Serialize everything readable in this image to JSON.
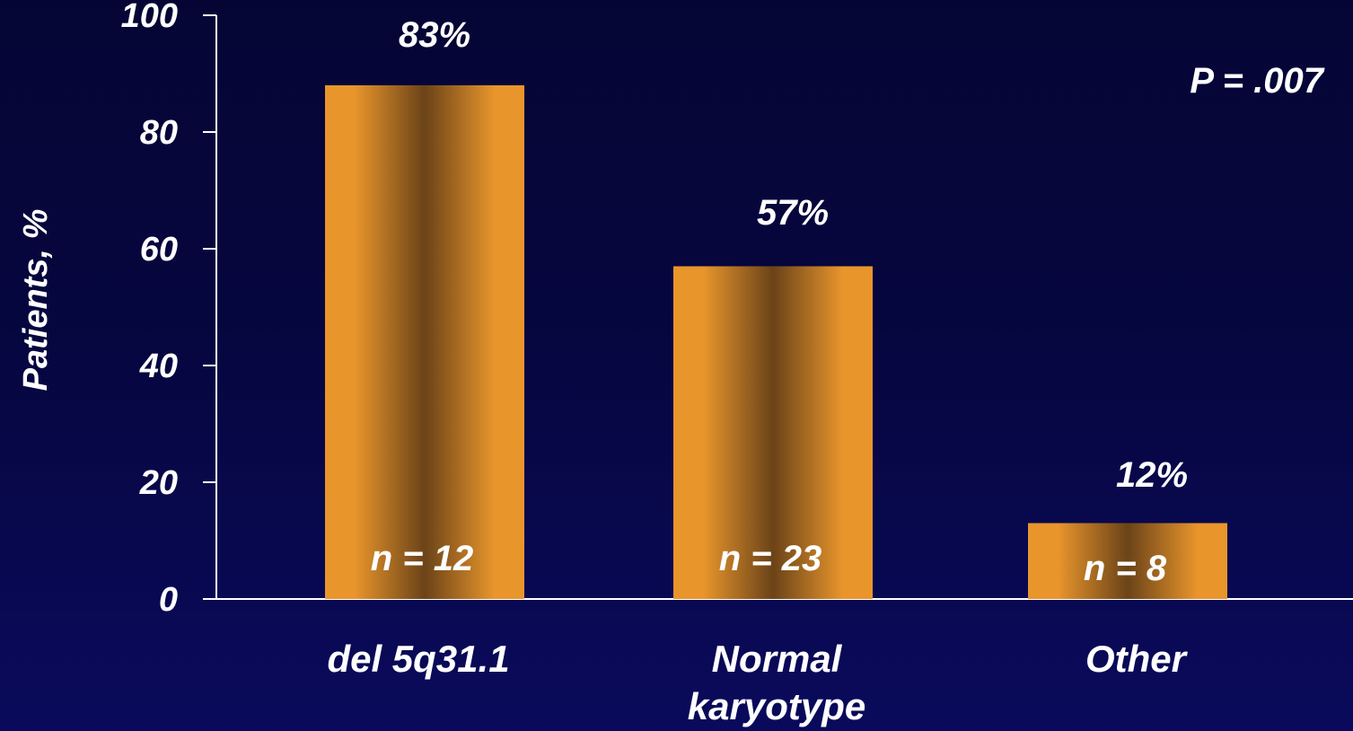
{
  "chart_data": {
    "type": "bar",
    "categories": [
      [
        "del 5q31.1"
      ],
      [
        "Normal",
        "karyotype"
      ],
      [
        "Other"
      ]
    ],
    "values": [
      83,
      57,
      12
    ],
    "value_labels": [
      "83%",
      "57%",
      "12%"
    ],
    "n_labels": [
      "n = 12",
      "n = 23",
      "n = 8"
    ],
    "ylabel": "Patients, %",
    "yticks": [
      0,
      20,
      40,
      60,
      80,
      100
    ],
    "ylim": [
      0,
      100
    ],
    "annotation": "P = .007",
    "grid": false,
    "bar_colors": {
      "edge": "#e8952c",
      "center": "#6b4318"
    },
    "axis_color": "#ffffff",
    "text_color": "#ffffff"
  }
}
